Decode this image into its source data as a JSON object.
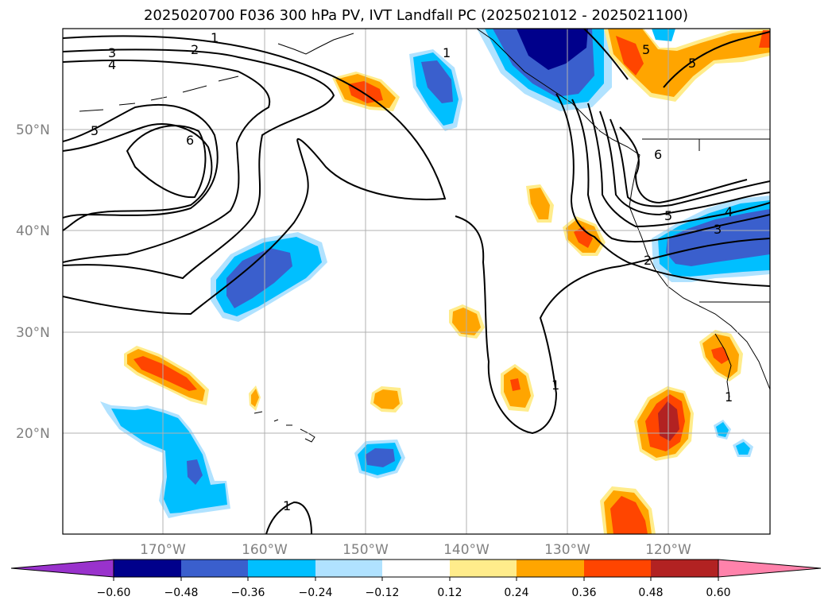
{
  "title": "2025020700 F036 300 hPa PV, IVT Landfall PC (2025021012 - 2025021100)",
  "map": {
    "lat_labels": [
      "50°N",
      "40°N",
      "30°N",
      "20°N"
    ],
    "lon_labels": [
      "170°W",
      "160°W",
      "150°W",
      "140°W",
      "130°W",
      "120°W"
    ],
    "contour_labels": [
      "1",
      "2",
      "3",
      "4",
      "5",
      "6",
      "1",
      "6",
      "5",
      "4",
      "3",
      "2",
      "1",
      "1",
      "5",
      "1",
      "5"
    ]
  },
  "colorbar": {
    "ticks": [
      "−0.60",
      "−0.48",
      "−0.36",
      "−0.24",
      "−0.12",
      "0.12",
      "0.24",
      "0.36",
      "0.48",
      "0.60"
    ],
    "colors": [
      "#9932CC",
      "#00008B",
      "#3A5FCD",
      "#00BFFF",
      "#B0E2FF",
      "#FFFFFF",
      "#FFEC8B",
      "#FFA500",
      "#FF4500",
      "#B22222",
      "#FF82AB"
    ]
  }
}
